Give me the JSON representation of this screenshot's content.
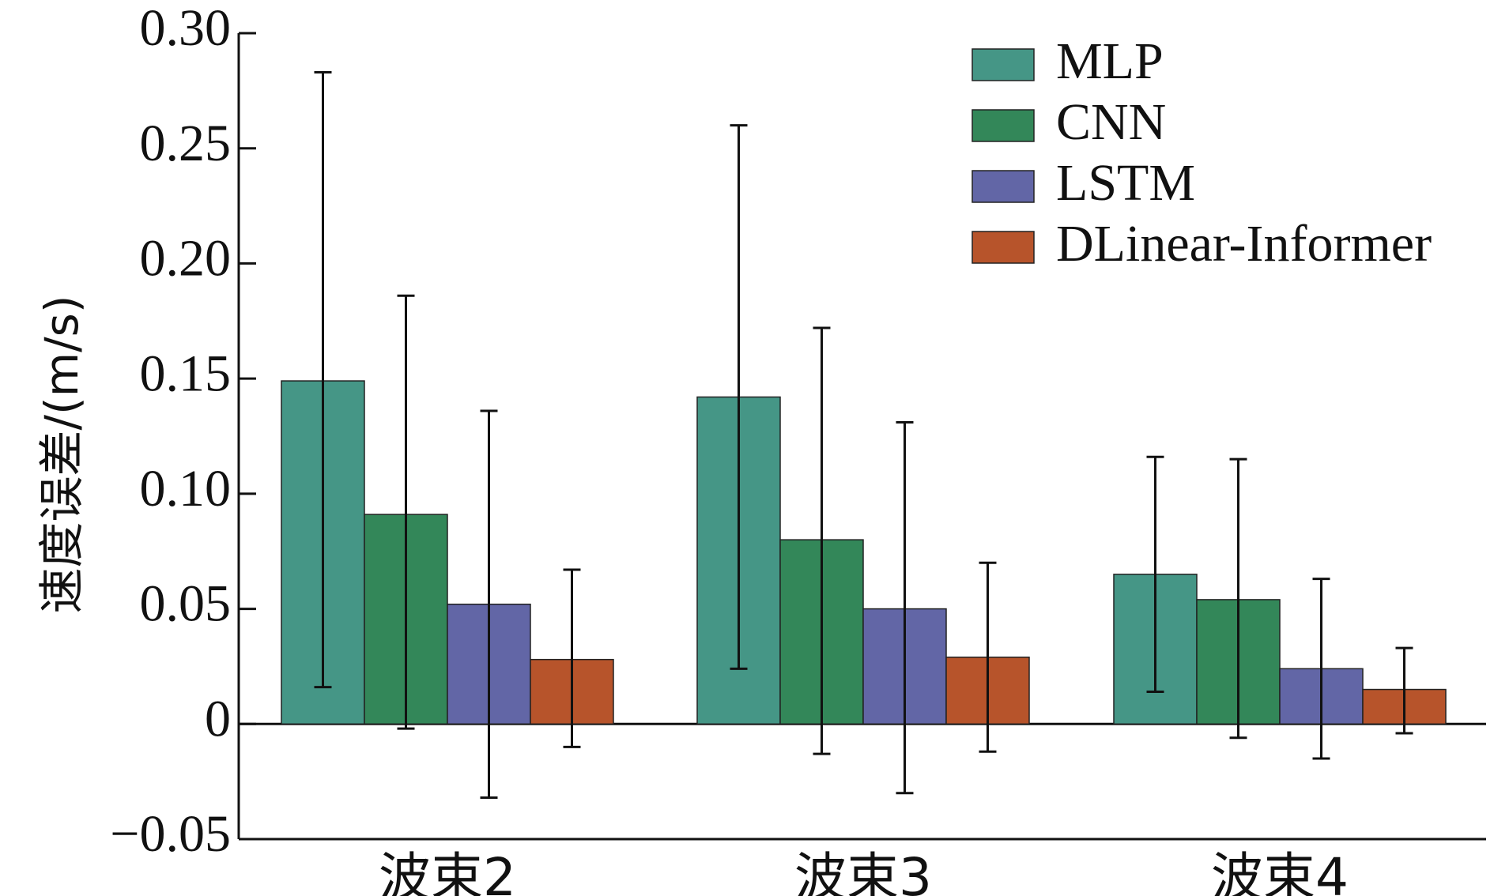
{
  "chart_data": {
    "type": "bar",
    "title": "",
    "xlabel": "",
    "ylabel": "速度误差/(m/s)",
    "ylim": [
      -0.05,
      0.3
    ],
    "yticks": [
      -0.05,
      0,
      0.05,
      0.1,
      0.15,
      0.2,
      0.25,
      0.3
    ],
    "ytick_labels": [
      "−0.05",
      "0",
      "0.05",
      "0.10",
      "0.15",
      "0.20",
      "0.25",
      "0.30"
    ],
    "categories": [
      "波束2",
      "波束3",
      "波束4"
    ],
    "legend_position": "top-right",
    "grid": false,
    "series": [
      {
        "name": "MLP",
        "color": "#459686",
        "values": [
          0.149,
          0.142,
          0.065
        ],
        "err_low": [
          0.016,
          0.024,
          0.014
        ],
        "err_high": [
          0.283,
          0.26,
          0.116
        ]
      },
      {
        "name": "CNN",
        "color": "#338759",
        "values": [
          0.091,
          0.08,
          0.054
        ],
        "err_low": [
          -0.002,
          -0.013,
          -0.006
        ],
        "err_high": [
          0.186,
          0.172,
          0.115
        ]
      },
      {
        "name": "LSTM",
        "color": "#6266a6",
        "values": [
          0.052,
          0.05,
          0.024
        ],
        "err_low": [
          -0.032,
          -0.03,
          -0.015
        ],
        "err_high": [
          0.136,
          0.131,
          0.063
        ]
      },
      {
        "name": "DLinear-Informer",
        "color": "#b7542b",
        "values": [
          0.028,
          0.029,
          0.015
        ],
        "err_low": [
          -0.01,
          -0.012,
          -0.004
        ],
        "err_high": [
          0.067,
          0.07,
          0.033
        ]
      }
    ]
  }
}
